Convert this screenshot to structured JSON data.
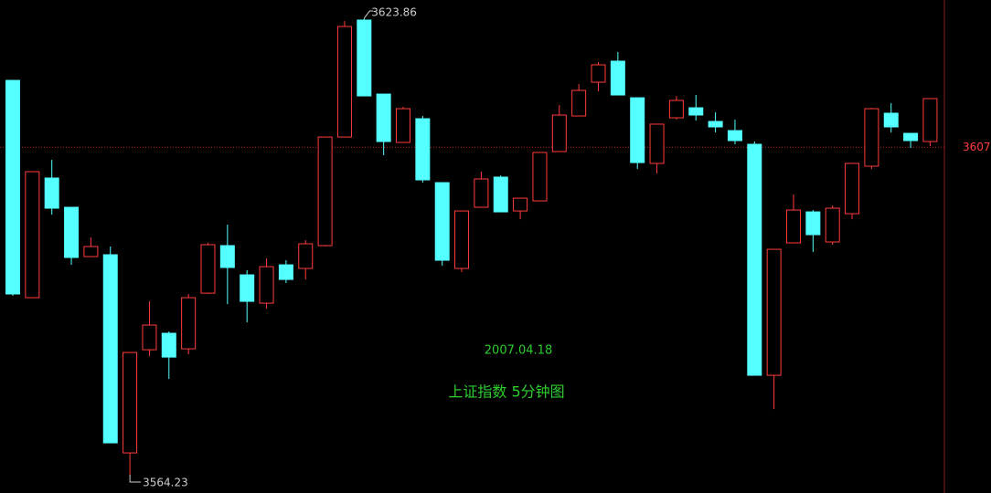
{
  "chart_data": {
    "type": "candlestick",
    "title": "上证指数 5分钟图",
    "subtitle": "2007.04.18",
    "up_color": "#ff3c3c",
    "down_color": "#54ffff",
    "ylim": [
      3561.84,
      3626.25
    ],
    "yticks": [
      3607
    ],
    "open": [
      3615.75,
      3587.36,
      3602.99,
      3599.17,
      3592.73,
      3592.97,
      3567.08,
      3580.56,
      3582.71,
      3580.68,
      3587.95,
      3594.16,
      3590.34,
      3586.64,
      3591.65,
      3591.18,
      3594.16,
      3608.35,
      3623.63,
      3613.96,
      3607.64,
      3610.74,
      3602.39,
      3591.18,
      3599.17,
      3603.11,
      3598.69,
      3600.0,
      3606.45,
      3611.1,
      3615.51,
      3618.26,
      3613.48,
      3604.9,
      3610.86,
      3612.17,
      3610.38,
      3609.19,
      3607.4,
      3577.22,
      3594.52,
      3598.57,
      3594.64,
      3598.33,
      3604.54,
      3611.46,
      3608.83,
      3607.76
    ],
    "high": [
      3615.75,
      3603.82,
      3605.37,
      3599.17,
      3595.23,
      3594.04,
      3580.2,
      3586.88,
      3582.94,
      3587.84,
      3594.52,
      3596.9,
      3590.94,
      3592.49,
      3592.25,
      3594.87,
      3608.35,
      3623.5,
      3623.86,
      3613.96,
      3612.29,
      3611.1,
      3602.39,
      3598.69,
      3603.82,
      3603.34,
      3600.36,
      3606.33,
      3612.53,
      3615.27,
      3618.14,
      3619.45,
      3613.48,
      3610.03,
      3613.72,
      3613.84,
      3611.58,
      3610.62,
      3607.76,
      3593.68,
      3600.84,
      3598.81,
      3599.41,
      3604.9,
      3612.17,
      3612.77,
      3608.83,
      3613.37
    ],
    "low": [
      3587.6,
      3587.36,
      3598.21,
      3591.65,
      3592.73,
      3568.39,
      3564.23,
      3579.72,
      3576.74,
      3579.96,
      3587.84,
      3586.52,
      3584.14,
      3585.93,
      3589.27,
      3589.74,
      3594.04,
      3608.35,
      3613.72,
      3605.97,
      3607.64,
      3602.39,
      3591.53,
      3590.7,
      3599.17,
      3598.57,
      3597.62,
      3600.0,
      3606.45,
      3611.1,
      3614.32,
      3613.84,
      3604.18,
      3603.58,
      3610.62,
      3610.5,
      3608.95,
      3607.4,
      3577.22,
      3572.8,
      3594.52,
      3593.32,
      3594.28,
      3597.62,
      3604.18,
      3608.95,
      3606.92,
      3607.16
    ],
    "close": [
      3587.84,
      3603.82,
      3599.05,
      3592.61,
      3594.04,
      3568.39,
      3580.2,
      3583.78,
      3579.6,
      3587.36,
      3594.28,
      3591.3,
      3586.88,
      3591.41,
      3589.74,
      3594.4,
      3608.35,
      3622.79,
      3613.72,
      3607.76,
      3612.05,
      3602.75,
      3592.25,
      3598.69,
      3602.87,
      3598.57,
      3600.36,
      3606.33,
      3611.22,
      3614.44,
      3617.78,
      3613.84,
      3605.01,
      3610.03,
      3613.13,
      3611.22,
      3609.67,
      3607.88,
      3577.22,
      3593.68,
      3598.81,
      3595.59,
      3599.05,
      3604.9,
      3612.05,
      3609.67,
      3607.88,
      3613.37
    ]
  }
}
